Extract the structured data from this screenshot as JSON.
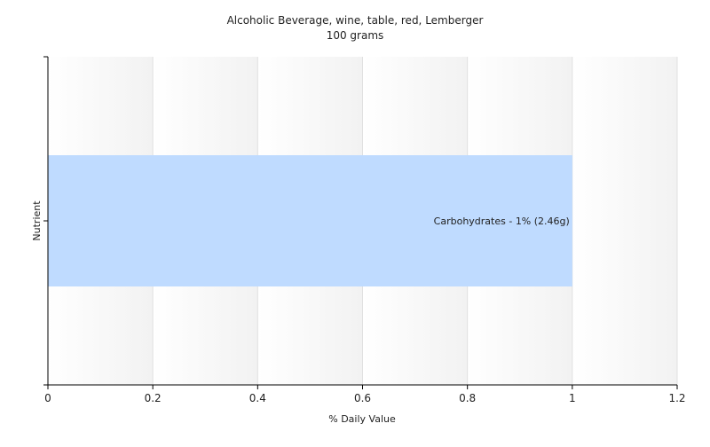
{
  "chart_data": {
    "type": "bar",
    "orientation": "horizontal",
    "title": "Alcoholic Beverage, wine, table, red, Lemberger",
    "subtitle": "100 grams",
    "xlabel": "% Daily Value",
    "ylabel": "Nutrient",
    "xlim": [
      0,
      1.2
    ],
    "xticks": [
      0,
      0.2,
      0.4,
      0.6,
      0.8,
      1,
      1.2
    ],
    "xtick_labels": [
      "0",
      "0.2",
      "0.4",
      "0.6",
      "0.8",
      "1",
      "1.2"
    ],
    "grid": true,
    "legend": "none",
    "categories": [
      "Carbohydrates"
    ],
    "values": [
      1
    ],
    "data_labels": [
      "Carbohydrates - 1% (2.46g)"
    ],
    "colors": {
      "bar": "#bfdbff",
      "grid": "#e0e0e0",
      "axis": "#000000",
      "plot_band_light": "#ffffff",
      "plot_band_dark": "#f2f2f2"
    }
  }
}
